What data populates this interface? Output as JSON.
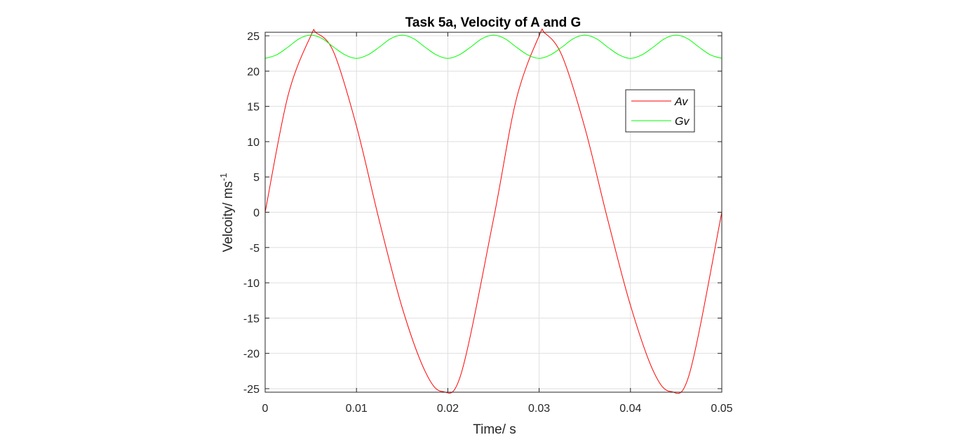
{
  "chart_data": {
    "type": "line",
    "title": "Task 5a, Velocity of A and G",
    "xlabel": "Time/ s",
    "ylabel": "Velcoity/ ms",
    "ylabel_superscript": "-1",
    "xlim": [
      0,
      0.05
    ],
    "ylim": [
      -25.5,
      25.5
    ],
    "xticks": [
      0,
      0.01,
      0.02,
      0.03,
      0.04,
      0.05
    ],
    "xtick_labels": [
      "0",
      "0.01",
      "0.02",
      "0.03",
      "0.04",
      "0.05"
    ],
    "yticks": [
      -25,
      -20,
      -15,
      -10,
      -5,
      0,
      5,
      10,
      15,
      20,
      25
    ],
    "ytick_labels": [
      "-25",
      "-20",
      "-15",
      "-10",
      "-5",
      "0",
      "5",
      "10",
      "15",
      "20",
      "25"
    ],
    "grid": true,
    "legend": {
      "placement": "top-right"
    },
    "series": [
      {
        "name": "Av",
        "color": "#ff0000",
        "x": [
          0,
          0.0025,
          0.005,
          0.0056,
          0.0075,
          0.01,
          0.0125,
          0.015,
          0.0175,
          0.0194,
          0.0215,
          0.025,
          0.0275,
          0.03,
          0.0306,
          0.0325,
          0.035,
          0.0375,
          0.04,
          0.0425,
          0.0444,
          0.0465,
          0.05
        ],
        "y": [
          0,
          16.5,
          25.0,
          25.4,
          22.7,
          12.2,
          -1.2,
          -13.5,
          -22.5,
          -25.4,
          -22.7,
          -1.0,
          16.0,
          25.0,
          25.4,
          22.2,
          12.0,
          -1.0,
          -13.2,
          -22.5,
          -25.4,
          -22.7,
          0
        ]
      },
      {
        "name": "Gv",
        "color": "#00ff00",
        "x": [
          0,
          0.00125,
          0.0025,
          0.00375,
          0.005,
          0.00625,
          0.0075,
          0.00875,
          0.01,
          0.01125,
          0.0125,
          0.01375,
          0.015,
          0.01625,
          0.0175,
          0.01875,
          0.02,
          0.02125,
          0.0225,
          0.02375,
          0.025,
          0.02625,
          0.0275,
          0.02875,
          0.03,
          0.03125,
          0.0325,
          0.03375,
          0.035,
          0.03625,
          0.0375,
          0.03875,
          0.04,
          0.04125,
          0.0425,
          0.04375,
          0.045,
          0.04625,
          0.0475,
          0.04875,
          0.05
        ],
        "y": [
          21.8,
          22.3,
          23.4,
          24.6,
          25.1,
          24.6,
          23.4,
          22.3,
          21.8,
          22.3,
          23.4,
          24.6,
          25.1,
          24.6,
          23.4,
          22.3,
          21.8,
          22.3,
          23.4,
          24.6,
          25.1,
          24.6,
          23.4,
          22.3,
          21.8,
          22.3,
          23.4,
          24.6,
          25.1,
          24.6,
          23.4,
          22.3,
          21.8,
          22.3,
          23.4,
          24.6,
          25.1,
          24.6,
          23.4,
          22.3,
          21.8
        ]
      }
    ]
  }
}
